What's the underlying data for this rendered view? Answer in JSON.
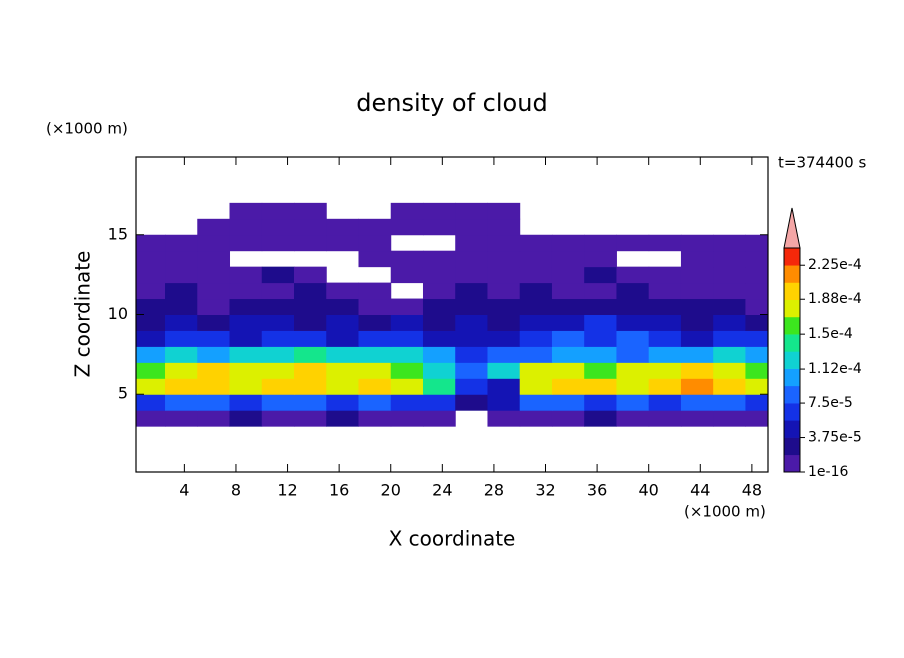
{
  "chart_data": {
    "type": "contour",
    "title": "density of cloud",
    "time_label": "t=374400 s",
    "x_label": "X coordinate",
    "y_label": "Z coordinate",
    "x_unit": "(×1000 m)",
    "y_unit": "(×1000 m)",
    "xlim": [
      0.25,
      49.25
    ],
    "ylim": [
      0.125,
      19.875
    ],
    "xticks": [
      4,
      8,
      12,
      16,
      20,
      24,
      28,
      32,
      36,
      40,
      44,
      48
    ],
    "yticks": [
      5,
      10,
      15
    ],
    "x": [
      1.25,
      3.75,
      6.25,
      8.75,
      11.25,
      13.75,
      16.25,
      18.75,
      21.25,
      23.75,
      26.25,
      28.75,
      31.25,
      33.75,
      36.25,
      38.75,
      41.25,
      43.75,
      46.25,
      48.75
    ],
    "y": [
      3.5,
      4.5,
      5.5,
      6.5,
      7.5,
      8.5,
      9.5,
      10.5,
      11.5,
      12.5,
      13.5,
      14.5,
      15.5,
      16.5
    ],
    "z": [
      [
        1e-05,
        1e-05,
        1e-05,
        2.8e-05,
        1e-05,
        1e-05,
        2.8e-05,
        1e-05,
        1e-05,
        1e-05,
        null,
        1e-05,
        1e-05,
        1e-05,
        2.8e-05,
        1e-05,
        1e-05,
        1e-05,
        1e-05,
        1e-05
      ],
      [
        6.5e-05,
        8.4e-05,
        8.4e-05,
        6.5e-05,
        8.4e-05,
        8.4e-05,
        6.5e-05,
        8.4e-05,
        6.5e-05,
        6.5e-05,
        2.8e-05,
        4.7e-05,
        8.4e-05,
        8.4e-05,
        6.5e-05,
        8.4e-05,
        6.5e-05,
        8.4e-05,
        8.4e-05,
        6.5e-05
      ],
      [
        0.000178,
        0.000197,
        0.000197,
        0.000178,
        0.000197,
        0.000197,
        0.000178,
        0.000197,
        0.000178,
        0.00014,
        6.5e-05,
        4.7e-05,
        0.000178,
        0.000197,
        0.000197,
        0.000178,
        0.000197,
        0.000215,
        0.000197,
        0.000178
      ],
      [
        0.000159,
        0.000178,
        0.000197,
        0.000178,
        0.000178,
        0.000197,
        0.000178,
        0.000178,
        0.000159,
        0.000122,
        8.4e-05,
        0.000122,
        0.000178,
        0.000178,
        0.000159,
        0.000178,
        0.000178,
        0.000197,
        0.000178,
        0.000159
      ],
      [
        0.000103,
        0.000122,
        0.000103,
        0.000122,
        0.000122,
        0.00014,
        0.000122,
        0.000122,
        0.000122,
        0.000103,
        6.5e-05,
        8.4e-05,
        8.4e-05,
        0.000103,
        0.000103,
        8.4e-05,
        0.000103,
        0.000103,
        0.000122,
        0.000103
      ],
      [
        4.7e-05,
        6.5e-05,
        6.5e-05,
        4.7e-05,
        6.5e-05,
        6.5e-05,
        4.7e-05,
        6.5e-05,
        6.5e-05,
        4.7e-05,
        4.7e-05,
        4.7e-05,
        6.5e-05,
        8.4e-05,
        6.5e-05,
        8.4e-05,
        6.5e-05,
        4.7e-05,
        6.5e-05,
        6.5e-05
      ],
      [
        2.8e-05,
        4.7e-05,
        2.8e-05,
        4.7e-05,
        4.7e-05,
        2.8e-05,
        4.7e-05,
        2.8e-05,
        4.7e-05,
        2.8e-05,
        4.7e-05,
        2.8e-05,
        4.7e-05,
        4.7e-05,
        6.5e-05,
        4.7e-05,
        4.7e-05,
        2.8e-05,
        4.7e-05,
        2.8e-05
      ],
      [
        2.8e-05,
        2.8e-05,
        1e-05,
        2.8e-05,
        2.8e-05,
        2.8e-05,
        2.8e-05,
        1e-05,
        1e-05,
        2.8e-05,
        2.8e-05,
        2.8e-05,
        2.8e-05,
        2.8e-05,
        2.8e-05,
        2.8e-05,
        2.8e-05,
        2.8e-05,
        2.8e-05,
        1e-05
      ],
      [
        1e-05,
        2.8e-05,
        1e-05,
        1e-05,
        1e-05,
        2.8e-05,
        1e-05,
        1e-05,
        null,
        1e-05,
        2.8e-05,
        1e-05,
        2.8e-05,
        1e-05,
        1e-05,
        2.8e-05,
        1e-05,
        1e-05,
        1e-05,
        1e-05
      ],
      [
        1e-05,
        1e-05,
        1e-05,
        1e-05,
        2.8e-05,
        1e-05,
        null,
        null,
        1e-05,
        1e-05,
        1e-05,
        1e-05,
        1e-05,
        1e-05,
        2.8e-05,
        1e-05,
        1e-05,
        1e-05,
        1e-05,
        1e-05
      ],
      [
        1e-05,
        1e-05,
        1e-05,
        null,
        null,
        null,
        null,
        1e-05,
        1e-05,
        1e-05,
        1e-05,
        1e-05,
        1e-05,
        1e-05,
        1e-05,
        null,
        null,
        1e-05,
        1e-05,
        1e-05
      ],
      [
        1e-05,
        1e-05,
        1e-05,
        1e-05,
        1e-05,
        1e-05,
        1e-05,
        1e-05,
        null,
        null,
        1e-05,
        1e-05,
        1e-05,
        1e-05,
        1e-05,
        1e-05,
        1e-05,
        1e-05,
        1e-05,
        1e-05
      ],
      [
        null,
        null,
        1e-05,
        1e-05,
        1e-05,
        1e-05,
        1e-05,
        1e-05,
        1e-05,
        1e-05,
        1e-05,
        1e-05,
        null,
        null,
        null,
        null,
        null,
        null,
        null,
        null
      ],
      [
        null,
        null,
        null,
        1e-05,
        1e-05,
        1e-05,
        null,
        null,
        1e-05,
        1e-05,
        1e-05,
        1e-05,
        null,
        null,
        null,
        null,
        null,
        null,
        null,
        null
      ]
    ],
    "levels": [
      1e-16,
      1.875e-05,
      3.75e-05,
      5.625e-05,
      7.5e-05,
      9.375e-05,
      0.0001125,
      0.00013125,
      0.00015,
      0.00016875,
      0.0001875,
      0.00020625,
      0.000225,
      0.00024375
    ],
    "colors": [
      "#4b1aa8",
      "#1e0c8c",
      "#1414b4",
      "#1432e6",
      "#1a64ff",
      "#14a0ff",
      "#10d2d2",
      "#14e68c",
      "#3ce61e",
      "#dcf000",
      "#ffd200",
      "#ff8c00",
      "#f5280a"
    ],
    "extend_color": "#f4a6a6",
    "colorbar_ticks": [
      1e-16,
      {
        "value": 3.75e-05,
        "label": "3.75e-5"
      },
      {
        "value": 7.5e-05,
        "label": "7.5e-5"
      },
      {
        "value": 0.000112,
        "label": "1.12e-4"
      },
      {
        "value": 0.00015,
        "label": "1.5e-4"
      },
      {
        "value": 0.000188,
        "label": "1.88e-4"
      },
      {
        "value": 0.000225,
        "label": "2.25e-4"
      }
    ]
  }
}
